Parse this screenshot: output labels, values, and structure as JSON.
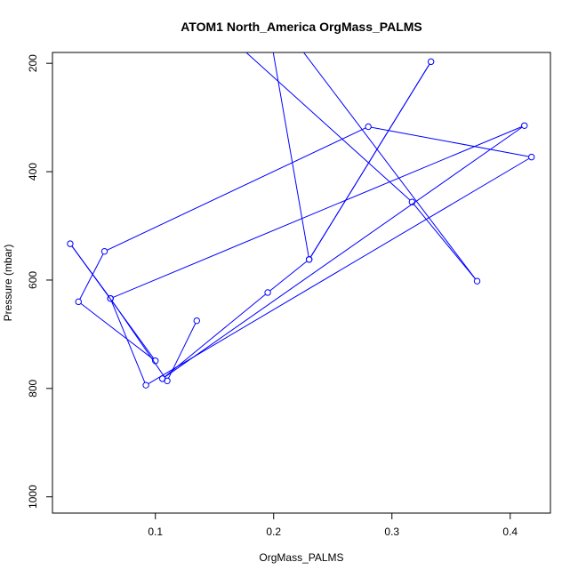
{
  "chart_data": {
    "type": "line",
    "title": "ATOM1 North_America OrgMass_PALMS",
    "xlabel": "OrgMass_PALMS",
    "ylabel": "Pressure (mbar)",
    "xlim": [
      0.013,
      0.434
    ],
    "ylim": [
      1030,
      180
    ],
    "y_reversed": true,
    "x_ticks": [
      "0.1",
      "0.2",
      "0.3",
      "0.4"
    ],
    "y_ticks": [
      "200",
      "400",
      "600",
      "800",
      "1000"
    ],
    "grid": false,
    "legend": "none",
    "series_color": "#0000ff",
    "series": [
      {
        "x": [
          0.128,
          0.317,
          0.372,
          0.192,
          0.23,
          0.333,
          0.23,
          0.195,
          0.106,
          0.412,
          0.062,
          0.028,
          0.1,
          0.035,
          0.057,
          0.28,
          0.418,
          0.092,
          0.062,
          0.11,
          0.135
        ],
        "y": [
          84,
          456,
          602,
          84,
          562,
          197,
          562,
          623,
          782,
          315,
          634,
          533,
          749,
          640,
          547,
          317,
          373,
          794,
          634,
          786,
          675
        ]
      }
    ]
  }
}
